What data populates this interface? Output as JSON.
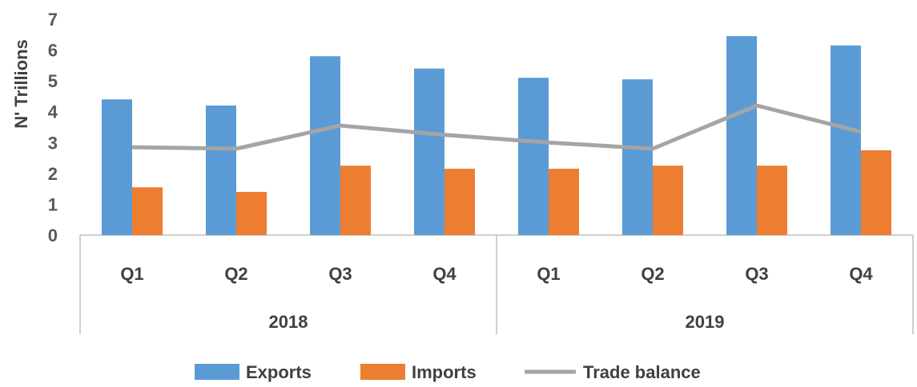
{
  "chart_data": {
    "type": "bar",
    "ylabel": "N' Trillions",
    "ylim": [
      0,
      7
    ],
    "yticks": [
      "0",
      "1",
      "2",
      "3",
      "4",
      "5",
      "6",
      "7"
    ],
    "groups": [
      "2018",
      "2019"
    ],
    "categories": [
      "Q1",
      "Q2",
      "Q3",
      "Q4",
      "Q1",
      "Q2",
      "Q3",
      "Q4"
    ],
    "series": [
      {
        "name": "Exports",
        "kind": "bar",
        "color": "#5B9BD5",
        "values": [
          4.4,
          4.2,
          5.8,
          5.4,
          5.1,
          5.05,
          6.45,
          6.15
        ]
      },
      {
        "name": "Imports",
        "kind": "bar",
        "color": "#ED7D31",
        "values": [
          1.55,
          1.4,
          2.25,
          2.15,
          2.15,
          2.25,
          2.25,
          2.75
        ]
      },
      {
        "name": "Trade balance",
        "kind": "line",
        "color": "#A5A5A5",
        "values": [
          2.85,
          2.8,
          3.55,
          3.25,
          3.0,
          2.8,
          4.2,
          3.35
        ]
      }
    ],
    "legend": "bottom",
    "grid": false
  }
}
